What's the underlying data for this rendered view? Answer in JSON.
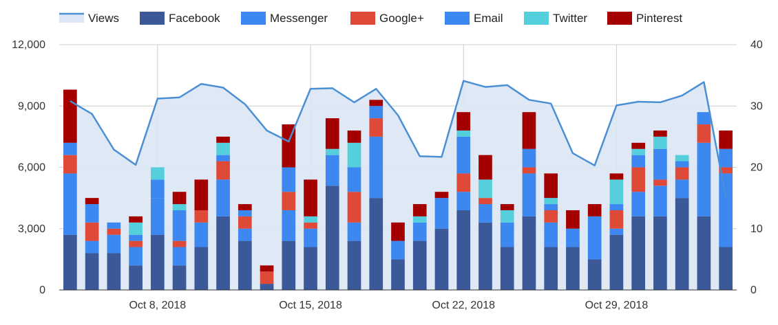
{
  "chart_data": {
    "type": "bar",
    "stacked": true,
    "x_tick_labels": [
      "Oct 8, 2018",
      "Oct 15, 2018",
      "Oct 22, 2018",
      "Oct 29, 2018"
    ],
    "y_left": {
      "ticks": [
        "0",
        "3,000",
        "6,000",
        "9,000",
        "12,000"
      ],
      "range": [
        0,
        12000
      ]
    },
    "y_right": {
      "ticks": [
        "0",
        "10",
        "20",
        "30",
        "40"
      ],
      "range": [
        0,
        40
      ]
    },
    "grid": true,
    "legend_position": "top",
    "legend": [
      {
        "name": "Views",
        "type": "area",
        "color": "#4a8fd4",
        "fill": "#dce6f4"
      },
      {
        "name": "Facebook",
        "type": "bar",
        "color": "#3b5998"
      },
      {
        "name": "Messenger",
        "type": "bar",
        "color": "#3d87f0"
      },
      {
        "name": "Google+",
        "type": "bar",
        "color": "#df4a38"
      },
      {
        "name": "Email",
        "type": "bar",
        "color": "#3d87f0"
      },
      {
        "name": "Twitter",
        "type": "bar",
        "color": "#55cfdc"
      },
      {
        "name": "Pinterest",
        "type": "bar",
        "color": "#a50000"
      }
    ],
    "bar_series": [
      {
        "name": "Facebook",
        "color": "#3b5998",
        "values": [
          2700,
          1800,
          1800,
          1200,
          2700,
          1200,
          2100,
          3600,
          2400,
          300,
          2400,
          2100,
          5100,
          2400,
          4500,
          1500,
          2400,
          3000,
          3900,
          3300,
          2100,
          3600,
          2100,
          2100,
          1500,
          2700,
          3600,
          3600,
          4500,
          3600,
          2100
        ]
      },
      {
        "name": "Messenger",
        "color": "#3d87f0",
        "values": [
          3000,
          600,
          900,
          900,
          1800,
          900,
          1200,
          1800,
          600,
          0,
          1500,
          900,
          1500,
          900,
          3000,
          900,
          900,
          1500,
          900,
          900,
          1200,
          2100,
          1200,
          900,
          2100,
          300,
          1200,
          1500,
          900,
          3600,
          3600
        ]
      },
      {
        "name": "Google+",
        "color": "#df4a38",
        "values": [
          900,
          900,
          300,
          300,
          0,
          300,
          600,
          900,
          600,
          600,
          900,
          300,
          0,
          1500,
          900,
          0,
          0,
          0,
          900,
          300,
          0,
          300,
          600,
          0,
          0,
          900,
          1200,
          300,
          600,
          900,
          300
        ]
      },
      {
        "name": "Email",
        "color": "#3d87f0",
        "values": [
          600,
          900,
          300,
          300,
          900,
          1500,
          0,
          300,
          300,
          0,
          1200,
          0,
          0,
          1200,
          600,
          0,
          0,
          0,
          1800,
          0,
          0,
          900,
          300,
          0,
          0,
          300,
          600,
          1500,
          300,
          600,
          900
        ]
      },
      {
        "name": "Twitter",
        "color": "#55cfdc",
        "values": [
          0,
          0,
          0,
          600,
          600,
          300,
          0,
          600,
          0,
          0,
          0,
          300,
          300,
          1200,
          0,
          0,
          300,
          0,
          300,
          900,
          600,
          0,
          300,
          0,
          0,
          1200,
          300,
          600,
          300,
          0,
          0
        ]
      },
      {
        "name": "Pinterest",
        "color": "#a50000",
        "values": [
          2600,
          300,
          0,
          300,
          0,
          600,
          1500,
          300,
          300,
          300,
          2100,
          1800,
          1500,
          600,
          300,
          900,
          600,
          300,
          900,
          1200,
          300,
          1800,
          1200,
          900,
          600,
          300,
          300,
          300,
          0,
          0,
          900
        ]
      }
    ],
    "views": {
      "name": "Views",
      "values": [
        30.8,
        28.7,
        22.9,
        20.4,
        31.2,
        31.4,
        33.6,
        33.0,
        30.3,
        26.0,
        24.2,
        32.8,
        32.9,
        30.6,
        32.8,
        28.5,
        21.8,
        21.7,
        34.1,
        33.1,
        33.4,
        31.0,
        30.4,
        22.3,
        20.3,
        30.1,
        30.7,
        30.6,
        31.7,
        33.9,
        15.2
      ]
    }
  }
}
